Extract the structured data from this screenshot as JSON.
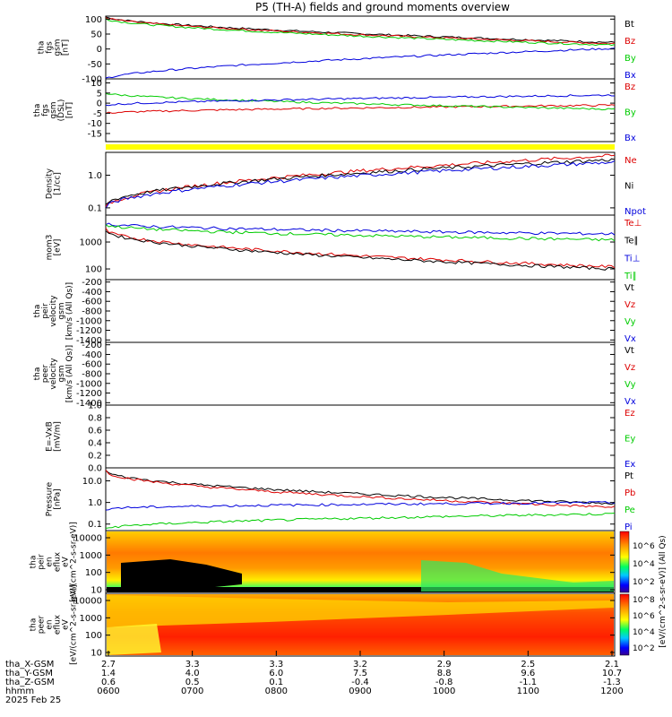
{
  "title": "P5 (TH-A) fields and ground moments overview",
  "colors": {
    "black": "#000000",
    "red": "#dd0000",
    "green": "#00cc00",
    "blue": "#0000dd",
    "yellow": "#ffff00"
  },
  "x_ticks": [
    "0600",
    "0700",
    "0800",
    "0900",
    "1000",
    "1100",
    "1200"
  ],
  "ephemeris": {
    "date": "2025 Feb 25",
    "rows": [
      {
        "label": "tha_X-GSM",
        "values": [
          "2.7",
          "3.3",
          "3.3",
          "3.2",
          "2.9",
          "2.5",
          "2.1"
        ]
      },
      {
        "label": "tha_Y-GSM",
        "values": [
          "1.4",
          "4.0",
          "6.0",
          "7.5",
          "8.8",
          "9.6",
          "10.7"
        ]
      },
      {
        "label": "tha_Z-GSM",
        "values": [
          "0.6",
          "0.5",
          "0.1",
          "-0.4",
          "-0.8",
          "-1.1",
          "-1.3"
        ]
      },
      {
        "label": "hhmm",
        "values": []
      }
    ]
  },
  "chart_data": [
    {
      "type": "line",
      "ylabel": [
        "tha",
        "fgs",
        "gsm",
        "[nT]"
      ],
      "yticks": [
        "100",
        "50",
        "0",
        "-50",
        "-100"
      ],
      "ylim": [
        -100,
        110
      ],
      "x": [
        "0600",
        "1200"
      ],
      "series": [
        {
          "name": "Bt",
          "color": "black",
          "values": [
            108,
            22
          ]
        },
        {
          "name": "Bz",
          "color": "red",
          "values": [
            106,
            18
          ]
        },
        {
          "name": "By",
          "color": "green",
          "values": [
            102,
            13
          ]
        },
        {
          "name": "Bx",
          "color": "blue",
          "values": [
            -100,
            2
          ]
        }
      ]
    },
    {
      "type": "line",
      "ylabel": [
        "tha",
        "fgs",
        "gsm",
        "(DSL)",
        "[nT]"
      ],
      "yticks": [
        "10",
        "5",
        "0",
        "-5",
        "-10",
        "-15"
      ],
      "ylim": [
        -19,
        12
      ],
      "x": [
        "0600",
        "1200"
      ],
      "series": [
        {
          "name": "Bz",
          "color": "red",
          "values": [
            -5,
            -1
          ]
        },
        {
          "name": "By",
          "color": "green",
          "values": [
            5,
            -3
          ]
        },
        {
          "name": "Bx",
          "color": "blue",
          "values": [
            -1,
            4
          ]
        }
      ]
    },
    {
      "type": "line",
      "ylabel": [
        "Density",
        "[1/cc]"
      ],
      "yticks": [
        "1.0",
        "0.1"
      ],
      "scale": "log",
      "ylim": [
        0.06,
        5
      ],
      "x": [
        "0600",
        "1200"
      ],
      "series": [
        {
          "name": "Ne",
          "color": "red",
          "values": [
            0.1,
            4
          ]
        },
        {
          "name": "Ni",
          "color": "black",
          "values": [
            0.12,
            3
          ]
        },
        {
          "name": "Npot",
          "color": "blue",
          "values": [
            0.1,
            2.5
          ]
        }
      ]
    },
    {
      "type": "line",
      "ylabel": [
        "mom3",
        "[eV]"
      ],
      "yticks": [
        "1000",
        "100"
      ],
      "scale": "log",
      "ylim": [
        40,
        10000
      ],
      "x": [
        "0600",
        "1200"
      ],
      "series": [
        {
          "name": "Te⊥",
          "color": "red",
          "values": [
            3000,
            120
          ]
        },
        {
          "name": "Te∥",
          "color": "black",
          "values": [
            2800,
            100
          ]
        },
        {
          "name": "Ti⊥",
          "color": "blue",
          "values": [
            5000,
            2000
          ]
        },
        {
          "name": "Ti∥",
          "color": "green",
          "values": [
            4500,
            1200
          ]
        }
      ]
    },
    {
      "type": "line",
      "ylabel": [
        "tha",
        "peir",
        "velocity",
        "gsm",
        "[km/s (All Qs)]"
      ],
      "yticks": [
        "-200",
        "-400",
        "-600",
        "-800",
        "-1000",
        "-1200",
        "-1400"
      ],
      "ylim": [
        -1450,
        -150
      ],
      "series": [
        {
          "name": "Vt",
          "color": "black",
          "values": []
        },
        {
          "name": "Vz",
          "color": "red",
          "values": []
        },
        {
          "name": "Vy",
          "color": "green",
          "values": []
        },
        {
          "name": "Vx",
          "color": "blue",
          "values": []
        }
      ]
    },
    {
      "type": "line",
      "ylabel": [
        "tha",
        "peer",
        "velocity",
        "gsm",
        "[km/s (All Qs)]"
      ],
      "yticks": [
        "-200",
        "-400",
        "-600",
        "-800",
        "-1000",
        "-1200",
        "-1400"
      ],
      "ylim": [
        -1450,
        -150
      ],
      "series": [
        {
          "name": "Vt",
          "color": "black",
          "values": []
        },
        {
          "name": "Vz",
          "color": "red",
          "values": []
        },
        {
          "name": "Vy",
          "color": "green",
          "values": []
        },
        {
          "name": "Vx",
          "color": "blue",
          "values": []
        }
      ]
    },
    {
      "type": "line",
      "ylabel": [
        "E=-VxB",
        "[mV/m]"
      ],
      "yticks": [
        "1.0",
        "0.8",
        "0.6",
        "0.4",
        "0.2",
        "0.0"
      ],
      "ylim": [
        0,
        1
      ],
      "series": [
        {
          "name": "Ez",
          "color": "red",
          "values": []
        },
        {
          "name": "Ey",
          "color": "green",
          "values": []
        },
        {
          "name": "Ex",
          "color": "blue",
          "values": []
        }
      ]
    },
    {
      "type": "line",
      "ylabel": [
        "Pressure",
        "[nPa]"
      ],
      "yticks": [
        "10.0",
        "1.0",
        "0.1"
      ],
      "scale": "log",
      "ylim": [
        0.05,
        40
      ],
      "x": [
        "0600",
        "1200"
      ],
      "series": [
        {
          "name": "Pt",
          "color": "black",
          "values": [
            30,
            0.9
          ]
        },
        {
          "name": "Pb",
          "color": "red",
          "values": [
            30,
            0.6
          ]
        },
        {
          "name": "Pe",
          "color": "green",
          "values": [
            0.06,
            0.3
          ]
        },
        {
          "name": "Pi",
          "color": "blue",
          "values": [
            0.5,
            1.0
          ]
        }
      ]
    },
    {
      "type": "heatmap",
      "ylabel": [
        "tha",
        "peir",
        "en",
        "eflux",
        "eV",
        "[eV/(cm^2-s-sr-eV)]"
      ],
      "yticks": [
        "10000",
        "1000",
        "100",
        "10"
      ],
      "colorbar_label": "[eV/(cm^2-s-sr-eV)] (All Qs)",
      "colorbar_ticks": [
        "10^6",
        "10^4",
        "10^2"
      ]
    },
    {
      "type": "heatmap",
      "ylabel": [
        "tha",
        "peer",
        "en",
        "eflux",
        "eV",
        "[eV/(cm^2-s-sr-eV)]"
      ],
      "yticks": [
        "10000",
        "1000",
        "100",
        "10"
      ],
      "colorbar_label": "",
      "colorbar_ticks": [
        "10^8",
        "10^6",
        "10^4",
        "10^2"
      ]
    }
  ]
}
